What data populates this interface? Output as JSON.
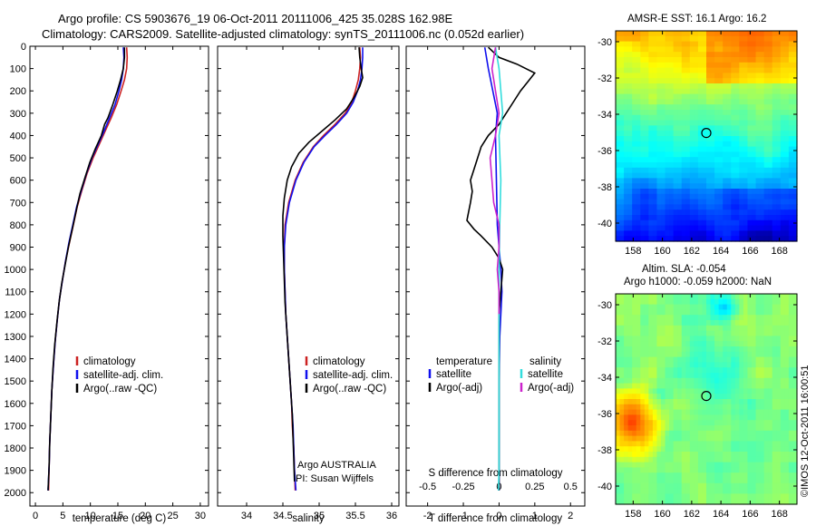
{
  "figure": {
    "title_line1": "Argo profile: CS 5903676_19 06-Oct-2011 20111006_425 35.028S 162.98E",
    "title_line2": "Climatology: CARS2009. Satellite-adjusted climatology: synTS_20111006.nc (0.052d earlier)",
    "watermark": "©IMOS 12-Oct-2011 16:00:51"
  },
  "colors": {
    "climatology": "#cc2222",
    "satellite": "#1010ee",
    "argo": "#000000",
    "sal_satellite": "#33dddd",
    "sal_argo": "#cc22cc"
  },
  "depth_ticks": [
    0,
    100,
    200,
    300,
    400,
    500,
    600,
    700,
    800,
    900,
    1000,
    1100,
    1200,
    1300,
    1400,
    1500,
    1600,
    1700,
    1800,
    1900,
    2000
  ],
  "chart_data": [
    {
      "type": "line",
      "xlabel": "temperature (deg C)",
      "xticks": [
        0,
        5,
        10,
        15,
        20,
        25,
        30
      ],
      "xlim": [
        -1,
        31.5
      ],
      "ylim": [
        0,
        2060
      ],
      "legend": [
        "climatology",
        "satellite-adj. clim.",
        "Argo(..raw -QC)"
      ],
      "series": [
        {
          "name": "climatology",
          "color": "#cc2222",
          "points": [
            [
              16.6,
              5
            ],
            [
              16.7,
              50
            ],
            [
              16.6,
              100
            ],
            [
              16.2,
              150
            ],
            [
              15.6,
              200
            ],
            [
              14.8,
              260
            ],
            [
              13.8,
              320
            ],
            [
              12.7,
              380
            ],
            [
              11.6,
              440
            ],
            [
              10.5,
              500
            ],
            [
              9.4,
              570
            ],
            [
              8.4,
              650
            ],
            [
              7.6,
              720
            ],
            [
              6.9,
              800
            ],
            [
              6.2,
              880
            ],
            [
              5.5,
              960
            ],
            [
              4.9,
              1050
            ],
            [
              4.4,
              1130
            ],
            [
              4.0,
              1220
            ],
            [
              3.6,
              1320
            ],
            [
              3.3,
              1420
            ],
            [
              3.0,
              1540
            ],
            [
              2.8,
              1660
            ],
            [
              2.6,
              1780
            ],
            [
              2.5,
              1880
            ],
            [
              2.4,
              1990
            ]
          ]
        },
        {
          "name": "satellite-adj. clim.",
          "color": "#1010ee",
          "points": [
            [
              16.0,
              5
            ],
            [
              16.1,
              50
            ],
            [
              16.0,
              100
            ],
            [
              15.7,
              150
            ],
            [
              15.2,
              200
            ],
            [
              14.5,
              260
            ],
            [
              13.5,
              320
            ],
            [
              12.5,
              380
            ],
            [
              11.4,
              440
            ],
            [
              10.3,
              500
            ],
            [
              9.3,
              570
            ],
            [
              8.3,
              650
            ],
            [
              7.5,
              720
            ],
            [
              6.8,
              800
            ],
            [
              6.1,
              880
            ],
            [
              5.5,
              960
            ],
            [
              4.9,
              1050
            ],
            [
              4.4,
              1130
            ],
            [
              4.0,
              1220
            ],
            [
              3.6,
              1320
            ],
            [
              3.3,
              1420
            ],
            [
              3.0,
              1540
            ],
            [
              2.8,
              1660
            ],
            [
              2.6,
              1780
            ],
            [
              2.5,
              1880
            ],
            [
              2.3,
              1990
            ]
          ]
        },
        {
          "name": "Argo(..raw -QC)",
          "color": "#000000",
          "points": [
            [
              16.2,
              5
            ],
            [
              16.2,
              50
            ],
            [
              16.0,
              100
            ],
            [
              15.5,
              150
            ],
            [
              14.9,
              200
            ],
            [
              14.1,
              260
            ],
            [
              13.2,
              320
            ],
            [
              12.6,
              350
            ],
            [
              12.0,
              400
            ],
            [
              10.9,
              460
            ],
            [
              9.9,
              520
            ],
            [
              9.0,
              590
            ],
            [
              8.1,
              660
            ],
            [
              7.4,
              740
            ],
            [
              6.7,
              820
            ],
            [
              6.0,
              900
            ],
            [
              5.4,
              980
            ],
            [
              4.8,
              1060
            ],
            [
              4.3,
              1150
            ],
            [
              3.9,
              1240
            ],
            [
              3.5,
              1340
            ],
            [
              3.2,
              1440
            ],
            [
              3.0,
              1540
            ],
            [
              2.8,
              1660
            ],
            [
              2.6,
              1780
            ],
            [
              2.5,
              1880
            ],
            [
              2.3,
              1990
            ]
          ]
        }
      ]
    },
    {
      "type": "line",
      "xlabel": "salinity",
      "xticks": [
        34,
        34.5,
        35,
        35.5,
        36
      ],
      "xlim": [
        33.6,
        36.1
      ],
      "ylim": [
        0,
        2060
      ],
      "legend": [
        "climatology",
        "satellite-adj. clim.",
        "Argo(..raw -QC)"
      ],
      "annotation": [
        "Argo AUSTRALIA",
        "PI: Susan Wijffels"
      ],
      "series": [
        {
          "name": "climatology",
          "color": "#cc2222",
          "points": [
            [
              35.56,
              5
            ],
            [
              35.57,
              50
            ],
            [
              35.56,
              100
            ],
            [
              35.54,
              150
            ],
            [
              35.5,
              200
            ],
            [
              35.45,
              250
            ],
            [
              35.36,
              300
            ],
            [
              35.22,
              350
            ],
            [
              35.06,
              400
            ],
            [
              34.92,
              450
            ],
            [
              34.78,
              520
            ],
            [
              34.67,
              600
            ],
            [
              34.58,
              700
            ],
            [
              34.53,
              800
            ],
            [
              34.52,
              900
            ],
            [
              34.52,
              1000
            ],
            [
              34.53,
              1100
            ],
            [
              34.54,
              1200
            ],
            [
              34.56,
              1300
            ],
            [
              34.58,
              1400
            ],
            [
              34.6,
              1500
            ],
            [
              34.62,
              1600
            ],
            [
              34.63,
              1700
            ],
            [
              34.65,
              1800
            ],
            [
              34.66,
              1900
            ],
            [
              34.67,
              1990
            ]
          ]
        },
        {
          "name": "satellite-adj. clim.",
          "color": "#1010ee",
          "points": [
            [
              35.6,
              5
            ],
            [
              35.6,
              50
            ],
            [
              35.59,
              100
            ],
            [
              35.57,
              150
            ],
            [
              35.53,
              200
            ],
            [
              35.47,
              250
            ],
            [
              35.38,
              300
            ],
            [
              35.24,
              350
            ],
            [
              35.08,
              400
            ],
            [
              34.93,
              450
            ],
            [
              34.79,
              520
            ],
            [
              34.68,
              600
            ],
            [
              34.59,
              700
            ],
            [
              34.54,
              800
            ],
            [
              34.52,
              900
            ],
            [
              34.52,
              1000
            ],
            [
              34.53,
              1100
            ],
            [
              34.54,
              1200
            ],
            [
              34.56,
              1300
            ],
            [
              34.58,
              1400
            ],
            [
              34.6,
              1500
            ],
            [
              34.62,
              1600
            ],
            [
              34.64,
              1700
            ],
            [
              34.65,
              1800
            ],
            [
              34.66,
              1900
            ],
            [
              34.68,
              1990
            ]
          ]
        },
        {
          "name": "Argo(..raw -QC)",
          "color": "#000000",
          "points": [
            [
              35.55,
              5
            ],
            [
              35.56,
              50
            ],
            [
              35.58,
              100
            ],
            [
              35.6,
              140
            ],
            [
              35.56,
              180
            ],
            [
              35.48,
              230
            ],
            [
              35.38,
              280
            ],
            [
              35.22,
              330
            ],
            [
              35.04,
              380
            ],
            [
              34.86,
              430
            ],
            [
              34.72,
              480
            ],
            [
              34.62,
              540
            ],
            [
              34.56,
              600
            ],
            [
              34.52,
              680
            ],
            [
              34.5,
              760
            ],
            [
              34.5,
              850
            ],
            [
              34.51,
              950
            ],
            [
              34.52,
              1050
            ],
            [
              34.53,
              1150
            ],
            [
              34.55,
              1250
            ],
            [
              34.57,
              1350
            ],
            [
              34.59,
              1450
            ],
            [
              34.61,
              1550
            ],
            [
              34.63,
              1650
            ],
            [
              34.64,
              1750
            ],
            [
              34.65,
              1850
            ],
            [
              34.66,
              1950
            ]
          ]
        }
      ]
    },
    {
      "type": "line",
      "xlabel": "T difference from climatology",
      "xlabel_top": "S difference from climatology",
      "xticks": [
        -2,
        -1,
        0,
        1,
        2
      ],
      "xticks_top_labels": [
        "-0.5",
        "-0.25",
        "0",
        "0.25",
        "0.5"
      ],
      "xlim": [
        -2.6,
        2.4
      ],
      "ylim": [
        0,
        2060
      ],
      "legend_temperature": {
        "heading": "temperature",
        "items": [
          "satellite",
          "Argo(-adj)"
        ]
      },
      "legend_salinity": {
        "heading": "salinity",
        "items": [
          "satellite",
          "Argo(-adj)"
        ]
      },
      "series": [
        {
          "name": "satellite",
          "color": "#1010ee",
          "points": [
            [
              -0.4,
              5
            ],
            [
              -0.3,
              100
            ],
            [
              -0.05,
              300
            ],
            [
              -0.1,
              400
            ],
            [
              -0.05,
              800
            ],
            [
              0.05,
              1000
            ],
            [
              0.08,
              1100
            ],
            [
              0.02,
              1300
            ],
            [
              0.0,
              1500
            ],
            [
              0.0,
              1900
            ],
            [
              0.0,
              1990
            ]
          ]
        },
        {
          "name": "Argo(-adj)",
          "color": "#000000",
          "points": [
            [
              -0.3,
              5
            ],
            [
              0.0,
              50
            ],
            [
              0.5,
              80
            ],
            [
              1.0,
              120
            ],
            [
              0.8,
              160
            ],
            [
              0.6,
              200
            ],
            [
              0.4,
              250
            ],
            [
              0.2,
              300
            ],
            [
              0.0,
              350
            ],
            [
              -0.3,
              400
            ],
            [
              -0.5,
              450
            ],
            [
              -0.6,
              500
            ],
            [
              -0.7,
              550
            ],
            [
              -0.8,
              600
            ],
            [
              -0.75,
              650
            ],
            [
              -0.8,
              700
            ],
            [
              -0.9,
              780
            ],
            [
              -0.7,
              820
            ],
            [
              -0.5,
              850
            ],
            [
              -0.2,
              900
            ],
            [
              0.0,
              950
            ],
            [
              0.1,
              1000
            ],
            [
              0.05,
              1100
            ],
            [
              0.0,
              1200
            ],
            [
              0.0,
              1500
            ],
            [
              0.0,
              1800
            ],
            [
              0.0,
              1990
            ]
          ]
        },
        {
          "name": "satellite",
          "color": "#33dddd",
          "points": [
            [
              -0.1,
              5
            ],
            [
              0.0,
              100
            ],
            [
              0.05,
              200
            ],
            [
              0.1,
              300
            ],
            [
              0.0,
              400
            ],
            [
              0.05,
              600
            ],
            [
              0.02,
              800
            ],
            [
              0.0,
              1000
            ],
            [
              0.0,
              1300
            ],
            [
              0.0,
              1500
            ],
            [
              0.0,
              1700
            ],
            [
              0.0,
              1900
            ],
            [
              -0.02,
              1990
            ]
          ]
        },
        {
          "name": "Argo(-adj)",
          "color": "#cc22cc",
          "points": [
            [
              -0.1,
              5
            ],
            [
              -0.2,
              100
            ],
            [
              -0.1,
              200
            ],
            [
              0.0,
              300
            ],
            [
              -0.1,
              400
            ],
            [
              -0.25,
              500
            ],
            [
              -0.2,
              600
            ],
            [
              -0.15,
              700
            ],
            [
              0.0,
              800
            ],
            [
              0.0,
              900
            ],
            [
              -0.05,
              1000
            ],
            [
              0.0,
              1100
            ],
            [
              0.0,
              1200
            ]
          ]
        }
      ]
    },
    {
      "type": "heatmap",
      "title": "AMSR-E SST: 16.1  Argo: 16.2",
      "xticks": [
        158,
        160,
        162,
        164,
        166,
        168
      ],
      "yticks": [
        -30,
        -32,
        -34,
        -36,
        -38,
        -40
      ],
      "xlim": [
        156.8,
        169.2
      ],
      "ylim": [
        -41.0,
        -29.4
      ],
      "marker": [
        163.0,
        -35.03
      ]
    },
    {
      "type": "heatmap",
      "title_line1": "Altim. SLA: -0.054",
      "title_line2": "Argo h1000: -0.059 h2000: NaN",
      "xticks": [
        158,
        160,
        162,
        164,
        166,
        168
      ],
      "yticks": [
        -30,
        -32,
        -34,
        -36,
        -38,
        -40
      ],
      "xlim": [
        156.8,
        169.2
      ],
      "ylim": [
        -41.0,
        -29.4
      ],
      "marker": [
        163.0,
        -35.03
      ]
    }
  ]
}
